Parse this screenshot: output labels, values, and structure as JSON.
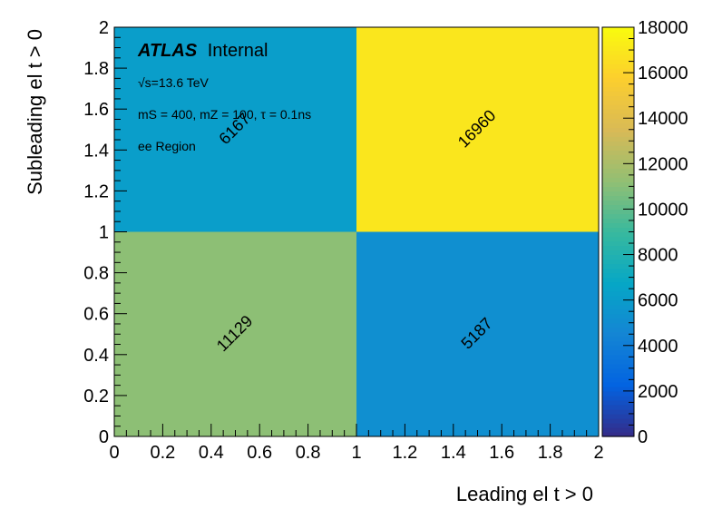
{
  "chart_data": {
    "type": "heatmap",
    "title": "",
    "xlabel": "Leading el t > 0",
    "ylabel": "Subleading el t > 0",
    "xlim": [
      0,
      2
    ],
    "ylim": [
      0,
      2
    ],
    "x_ticks": [
      "0",
      "0.2",
      "0.4",
      "0.6",
      "0.8",
      "1",
      "1.2",
      "1.4",
      "1.6",
      "1.8",
      "2"
    ],
    "y_ticks": [
      "0",
      "0.2",
      "0.4",
      "0.6",
      "0.8",
      "1",
      "1.2",
      "1.4",
      "1.6",
      "1.8",
      "2"
    ],
    "x_bins": [
      [
        0,
        1
      ],
      [
        1,
        2
      ]
    ],
    "y_bins": [
      [
        0,
        1
      ],
      [
        1,
        2
      ]
    ],
    "cells": [
      {
        "x": [
          0,
          1
        ],
        "y": [
          0,
          1
        ],
        "value": 11129,
        "label": "11129"
      },
      {
        "x": [
          1,
          2
        ],
        "y": [
          0,
          1
        ],
        "value": 5187,
        "label": "5187"
      },
      {
        "x": [
          0,
          1
        ],
        "y": [
          1,
          2
        ],
        "value": 6167,
        "label": "6167"
      },
      {
        "x": [
          1,
          2
        ],
        "y": [
          1,
          2
        ],
        "value": 16960,
        "label": "16960"
      }
    ],
    "colorbar": {
      "zlim": [
        0,
        18000
      ],
      "ticks": [
        "0",
        "2000",
        "4000",
        "6000",
        "8000",
        "10000",
        "12000",
        "14000",
        "16000",
        "18000"
      ],
      "palette": [
        "#352a87",
        "#0363e1",
        "#1485d4",
        "#06a7c6",
        "#38b99e",
        "#92bf73",
        "#d9ba56",
        "#fcce2e",
        "#f9fb0e"
      ]
    },
    "annotations": {
      "atlas_label": "ATLAS",
      "atlas_status": "Internal",
      "energy": "√s=13.6 TeV",
      "model": "mS = 400, mZ = 100, τ = 0.1ns",
      "region": "ee Region"
    }
  }
}
